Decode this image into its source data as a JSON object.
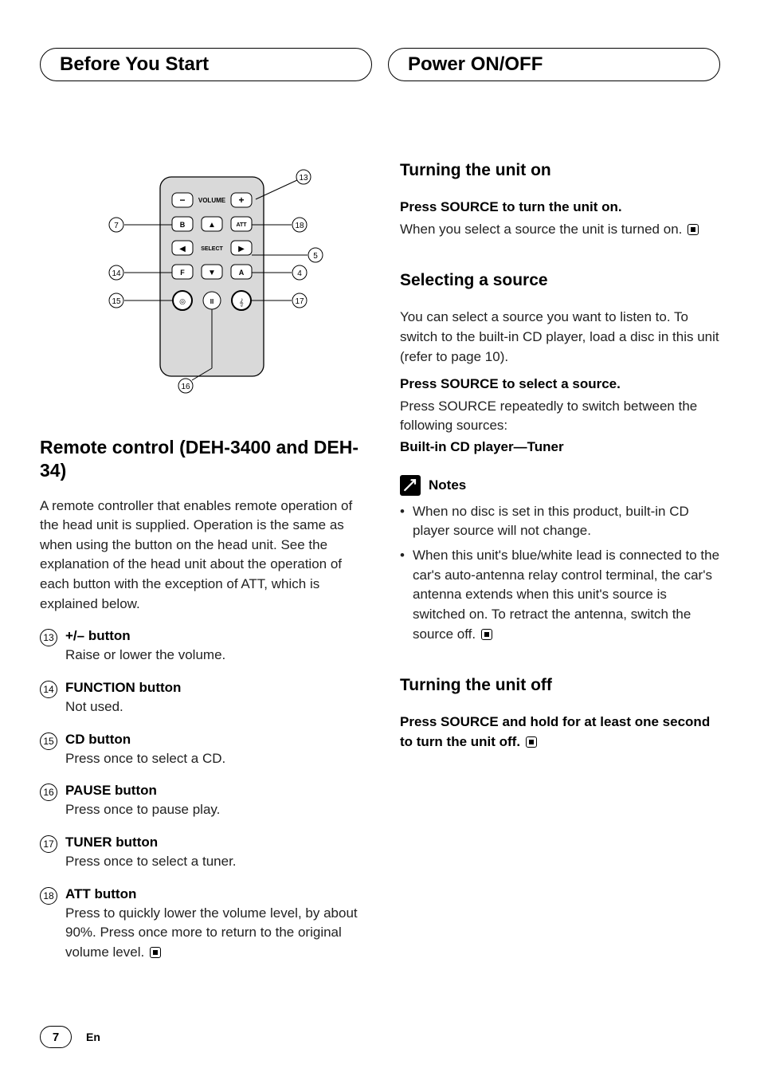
{
  "header": {
    "left": "Before You Start",
    "right": "Power ON/OFF"
  },
  "remote": {
    "callouts": {
      "c4": "4",
      "c5": "5",
      "c7": "7",
      "c13": "13",
      "c14": "14",
      "c15": "15",
      "c16": "16",
      "c17": "17",
      "c18": "18"
    },
    "labels": {
      "volume": "VOLUME",
      "select": "SELECT",
      "b": "B",
      "att": "ATT",
      "f": "F",
      "a": "A"
    }
  },
  "left": {
    "title": "Remote control (DEH-3400 and DEH-34)",
    "intro": "A remote controller that enables remote operation of the head unit is supplied. Operation is the same as when using the button on the head unit. See the explanation of the head unit about the operation of each button with the exception of ATT, which is explained below.",
    "items": [
      {
        "num": "13",
        "title": "+/– button",
        "desc": "Raise or lower the volume."
      },
      {
        "num": "14",
        "title": "FUNCTION button",
        "desc": "Not used."
      },
      {
        "num": "15",
        "title": "CD button",
        "desc": "Press once to select a CD."
      },
      {
        "num": "16",
        "title": "PAUSE button",
        "desc": "Press once to pause play."
      },
      {
        "num": "17",
        "title": "TUNER button",
        "desc": "Press once to select a tuner."
      },
      {
        "num": "18",
        "title": "ATT button",
        "desc": "Press to quickly lower the volume level, by about 90%. Press once more to return to the original volume level."
      }
    ]
  },
  "right": {
    "s1": {
      "heading": "Turning the unit on",
      "bold": "Press SOURCE to turn the unit on.",
      "body": "When you select a source the unit is turned on."
    },
    "s2": {
      "heading": "Selecting a source",
      "intro": "You can select a source you want to listen to. To switch to the built-in CD player, load a disc in this unit (refer to page 10).",
      "bold": "Press SOURCE to select a source.",
      "body": "Press SOURCE repeatedly to switch between the following sources:",
      "sources": "Built-in CD player—Tuner",
      "notesLabel": "Notes",
      "notes": [
        "When no disc is set in this product, built-in CD player source will not change.",
        "When this unit's blue/white lead is connected to the car's auto-antenna relay control terminal, the car's antenna extends when this unit's source is switched on. To retract the antenna, switch the source off."
      ]
    },
    "s3": {
      "heading": "Turning the unit off",
      "bold": "Press SOURCE and hold for at least one second to turn the unit off."
    }
  },
  "footer": {
    "page": "7",
    "lang": "En"
  }
}
